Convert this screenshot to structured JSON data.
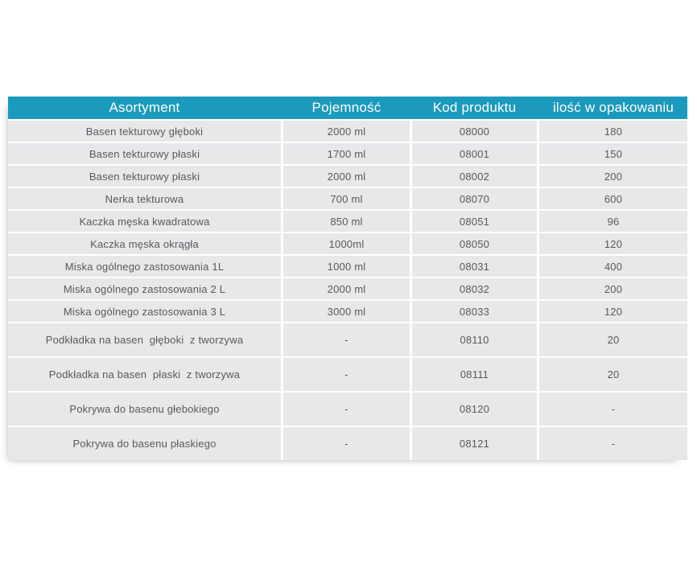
{
  "table": {
    "accent_color": "#1b9abd",
    "row_bg_color": "#e7e8ea",
    "header_text_color": "#ffffff",
    "body_text_color": "#58595b",
    "headers": [
      "Asortyment",
      "Pojemność",
      "Kod produktu",
      "ilość w opakowaniu"
    ],
    "rows": [
      {
        "asortyment": "Basen tekturowy głęboki",
        "pojemnosc": "2000 ml",
        "kod": "08000",
        "ilosc": "180",
        "tall": false
      },
      {
        "asortyment": "Basen tekturowy płaski",
        "pojemnosc": "1700 ml",
        "kod": "08001",
        "ilosc": "150",
        "tall": false
      },
      {
        "asortyment": "Basen tekturowy płaski",
        "pojemnosc": "2000 ml",
        "kod": "08002",
        "ilosc": "200",
        "tall": false
      },
      {
        "asortyment": "Nerka tekturowa",
        "pojemnosc": "700 ml",
        "kod": "08070",
        "ilosc": "600",
        "tall": false
      },
      {
        "asortyment": "Kaczka męska kwadratowa",
        "pojemnosc": "850 ml",
        "kod": "08051",
        "ilosc": "96",
        "tall": false
      },
      {
        "asortyment": "Kaczka męska okrągła",
        "pojemnosc": "1000ml",
        "kod": "08050",
        "ilosc": "120",
        "tall": false
      },
      {
        "asortyment": "Miska ogólnego zastosowania 1L",
        "pojemnosc": "1000 ml",
        "kod": "08031",
        "ilosc": "400",
        "tall": false
      },
      {
        "asortyment": "Miska ogólnego zastosowania 2 L",
        "pojemnosc": "2000 ml",
        "kod": "08032",
        "ilosc": "200",
        "tall": false
      },
      {
        "asortyment": "Miska ogólnego zastosowania 3 L",
        "pojemnosc": "3000 ml",
        "kod": "08033",
        "ilosc": "120",
        "tall": false
      },
      {
        "asortyment": "Podkładka na basen  głęboki  z tworzywa",
        "pojemnosc": "-",
        "kod": "08110",
        "ilosc": "20",
        "tall": true
      },
      {
        "asortyment": "Podkładka na basen  płaski  z tworzywa",
        "pojemnosc": "-",
        "kod": "08111",
        "ilosc": "20",
        "tall": true
      },
      {
        "asortyment": "Pokrywa do basenu głebokiego",
        "pojemnosc": "-",
        "kod": "08120",
        "ilosc": "-",
        "tall": true
      },
      {
        "asortyment": "Pokrywa do basenu płaskiego",
        "pojemnosc": "-",
        "kod": "08121",
        "ilosc": "-",
        "tall": true
      }
    ]
  },
  "chart_data": {
    "type": "table",
    "title": "",
    "columns": [
      "Asortyment",
      "Pojemność",
      "Kod produktu",
      "ilość w opakowaniu"
    ],
    "rows": [
      [
        "Basen tekturowy głęboki",
        "2000 ml",
        "08000",
        "180"
      ],
      [
        "Basen tekturowy płaski",
        "1700 ml",
        "08001",
        "150"
      ],
      [
        "Basen tekturowy płaski",
        "2000 ml",
        "08002",
        "200"
      ],
      [
        "Nerka tekturowa",
        "700 ml",
        "08070",
        "600"
      ],
      [
        "Kaczka męska kwadratowa",
        "850 ml",
        "08051",
        "96"
      ],
      [
        "Kaczka męska okrągła",
        "1000ml",
        "08050",
        "120"
      ],
      [
        "Miska ogólnego zastosowania 1L",
        "1000 ml",
        "08031",
        "400"
      ],
      [
        "Miska ogólnego zastosowania 2 L",
        "2000 ml",
        "08032",
        "200"
      ],
      [
        "Miska ogólnego zastosowania 3 L",
        "3000 ml",
        "08033",
        "120"
      ],
      [
        "Podkładka na basen  głęboki  z tworzywa",
        "-",
        "08110",
        "20"
      ],
      [
        "Podkładka na basen  płaski  z tworzywa",
        "-",
        "08111",
        "20"
      ],
      [
        "Pokrywa do basenu głebokiego",
        "-",
        "08120",
        "-"
      ],
      [
        "Pokrywa do basenu płaskiego",
        "-",
        "08121",
        "-"
      ]
    ]
  }
}
